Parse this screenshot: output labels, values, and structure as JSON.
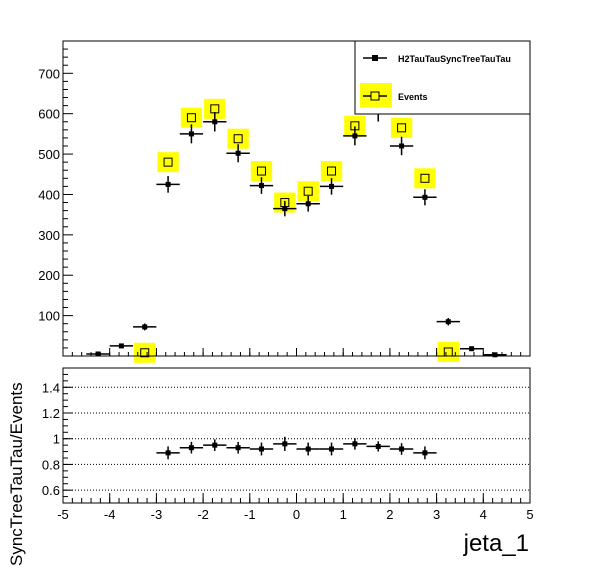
{
  "chart_data": [
    {
      "type": "scatter",
      "panel": "top",
      "title": "",
      "xlabel": "",
      "ylabel": "",
      "xlim": [
        -5,
        5
      ],
      "ylim": [
        0,
        780
      ],
      "yticks": [
        100,
        200,
        300,
        400,
        500,
        600,
        700
      ],
      "bin_width": 0.5,
      "legend_position": "top-right",
      "series": [
        {
          "name": "H2TauTauSyncTreeTauTau",
          "style": "black-points-with-error-bars",
          "color": "#000000",
          "x": [
            -4.25,
            -3.75,
            -3.25,
            -2.75,
            -2.25,
            -1.75,
            -1.25,
            -0.75,
            -0.25,
            0.25,
            0.75,
            1.25,
            1.75,
            2.25,
            2.75,
            3.25,
            3.75,
            4.25
          ],
          "y": [
            5,
            25,
            72,
            425,
            550,
            580,
            502,
            422,
            365,
            377,
            420,
            545,
            605,
            520,
            393,
            85,
            18,
            3
          ]
        },
        {
          "name": "Events",
          "style": "open-squares-with-yellow-band",
          "color": "#ffff00",
          "x": [
            -3.25,
            -2.75,
            -2.25,
            -1.75,
            -1.25,
            -0.75,
            -0.25,
            0.25,
            0.75,
            1.25,
            1.75,
            2.25,
            2.75,
            3.25
          ],
          "y": [
            8,
            480,
            590,
            612,
            538,
            458,
            380,
            408,
            458,
            570,
            640,
            565,
            440,
            10
          ]
        }
      ]
    },
    {
      "type": "scatter",
      "panel": "ratio",
      "xlabel": "jeta_1",
      "ylabel": "SyncTreeTauTau/Events",
      "xlim": [
        -5,
        5
      ],
      "ylim": [
        0.5,
        1.55
      ],
      "xticks": [
        -5,
        -4,
        -3,
        -2,
        -1,
        0,
        1,
        2,
        3,
        4,
        5
      ],
      "yticks": [
        0.6,
        0.8,
        1,
        1.2,
        1.4
      ],
      "grid": "horizontal dotted",
      "series": [
        {
          "name": "ratio",
          "color": "#000000",
          "x": [
            -2.75,
            -2.25,
            -1.75,
            -1.25,
            -0.75,
            -0.25,
            0.25,
            0.75,
            1.25,
            1.75,
            2.25,
            2.75
          ],
          "y": [
            0.89,
            0.93,
            0.95,
            0.93,
            0.92,
            0.96,
            0.92,
            0.92,
            0.96,
            0.94,
            0.92,
            0.89
          ],
          "err": [
            0.05,
            0.045,
            0.045,
            0.045,
            0.05,
            0.055,
            0.05,
            0.05,
            0.045,
            0.04,
            0.045,
            0.05
          ]
        }
      ]
    }
  ]
}
